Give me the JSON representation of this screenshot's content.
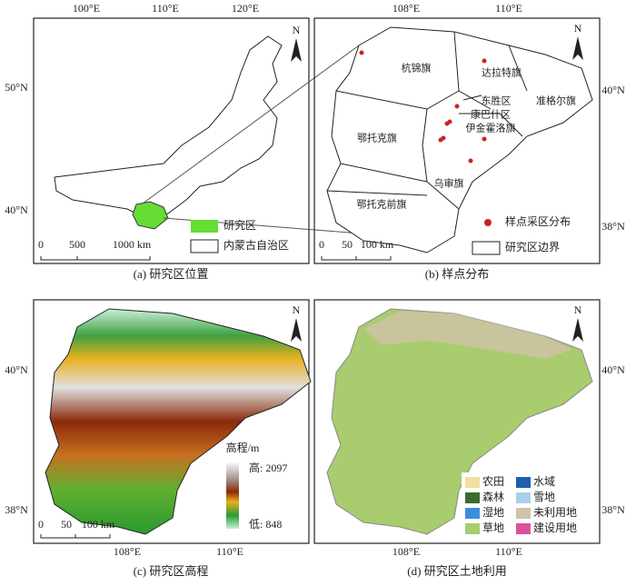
{
  "panels": [
    {
      "caption": "(a) 研究区位置",
      "north": "N",
      "lon_labels": [
        "100°E",
        "110°E",
        "120°E"
      ],
      "lat_labels": [
        "50°N",
        "40°N"
      ],
      "scale_labels": [
        "0",
        "500",
        "1000 km"
      ],
      "legend": [
        {
          "label": "研究区",
          "color": "#66dd33"
        },
        {
          "label": "内蒙古自治区",
          "color": "#ffffff"
        }
      ]
    },
    {
      "caption": "(b) 样点分布",
      "north": "N",
      "lon_labels": [
        "108°E",
        "110°E"
      ],
      "lat_labels": [
        "40°N",
        "38°N"
      ],
      "scale_labels": [
        "0",
        "50",
        "100 km"
      ],
      "districts": [
        "杭锦旗",
        "达拉特旗",
        "东胜区",
        "准格尔旗",
        "康巴什区",
        "伊金霍洛旗",
        "鄂托克旗",
        "乌审旗",
        "鄂托克前旗"
      ],
      "legend": [
        {
          "label": "样点采区分布",
          "color": "#cc2222"
        },
        {
          "label": "研究区边界",
          "color": "#ffffff"
        }
      ]
    },
    {
      "caption": "(c) 研究区高程",
      "north": "N",
      "lon_labels": [
        "108°E",
        "110°E"
      ],
      "lat_labels": [
        "40°N",
        "38°N"
      ],
      "scale_labels": [
        "0",
        "50",
        "100 km"
      ],
      "legend_title": "高程/m",
      "high_label": "高: 2097",
      "low_label": "低: 848"
    },
    {
      "caption": "(d) 研究区土地利用",
      "north": "N",
      "lon_labels": [
        "108°E",
        "110°E"
      ],
      "lat_labels": [
        "40°N",
        "38°N"
      ],
      "legend": [
        {
          "label": "农田",
          "color": "#f2dea0"
        },
        {
          "label": "森林",
          "color": "#3a6b30"
        },
        {
          "label": "湿地",
          "color": "#3a8ee0"
        },
        {
          "label": "草地",
          "color": "#a8cc6e"
        },
        {
          "label": "水域",
          "color": "#1f5fb0"
        },
        {
          "label": "雪地",
          "color": "#a8d0e8"
        },
        {
          "label": "未利用地",
          "color": "#cfc2a8"
        },
        {
          "label": "建设用地",
          "color": "#e0509a"
        }
      ]
    }
  ]
}
